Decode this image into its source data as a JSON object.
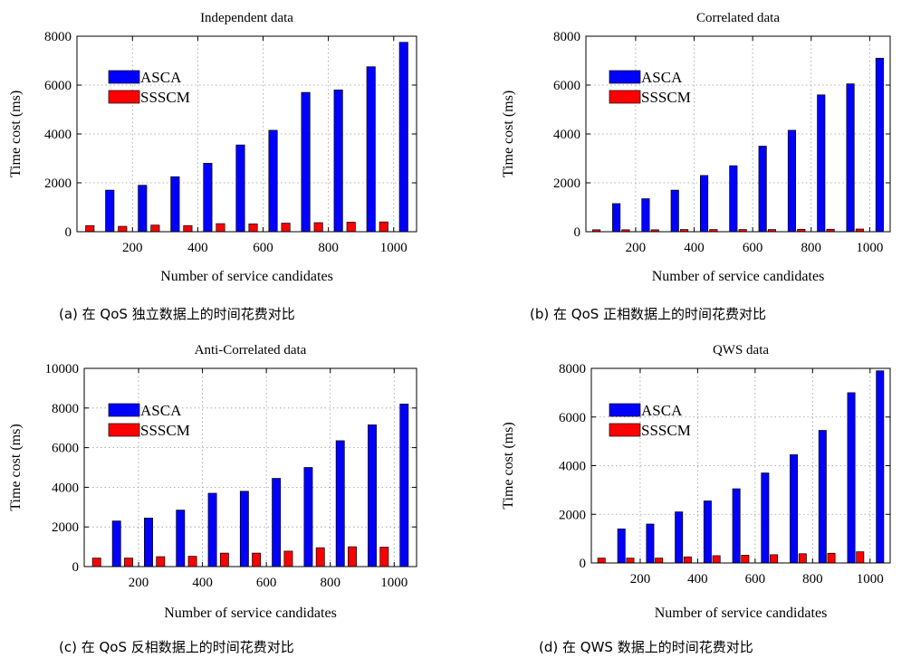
{
  "chart_data": [
    {
      "type": "bar",
      "title": "Independent data",
      "xlabel": "Number of service candidates",
      "ylabel": "Time cost (ms)",
      "caption": "(a)  在 QoS 独立数据上的时间花费对比",
      "categories": [
        100,
        200,
        300,
        400,
        500,
        600,
        700,
        800,
        900,
        1000
      ],
      "x_tick_labels": [
        "200",
        "400",
        "600",
        "800",
        "1000"
      ],
      "ylim": [
        0,
        8000
      ],
      "y_ticks": [
        0,
        2000,
        4000,
        6000,
        8000
      ],
      "grid": true,
      "legend_position": "upper-left",
      "series": [
        {
          "name": "ASCA",
          "color": "#0000ff",
          "values": [
            1700,
            1900,
            2250,
            2800,
            3550,
            4150,
            5700,
            5800,
            6750,
            7750
          ]
        },
        {
          "name": "SSSCM",
          "color": "#ff0000",
          "values": [
            250,
            220,
            270,
            250,
            330,
            320,
            350,
            370,
            390,
            400
          ]
        }
      ]
    },
    {
      "type": "bar",
      "title": "Correlated data",
      "xlabel": "Number of service candidates",
      "ylabel": "Time cost (ms)",
      "caption": "(b)  在 QoS 正相数据上的时间花费对比",
      "categories": [
        100,
        200,
        300,
        400,
        500,
        600,
        700,
        800,
        900,
        1000
      ],
      "x_tick_labels": [
        "200",
        "400",
        "600",
        "800",
        "1000"
      ],
      "ylim": [
        0,
        8000
      ],
      "y_ticks": [
        0,
        2000,
        4000,
        6000,
        8000
      ],
      "grid": true,
      "legend_position": "upper-left",
      "series": [
        {
          "name": "ASCA",
          "color": "#0000ff",
          "values": [
            1150,
            1350,
            1700,
            2300,
            2700,
            3500,
            4150,
            5600,
            6050,
            7100
          ]
        },
        {
          "name": "SSSCM",
          "color": "#ff0000",
          "values": [
            80,
            80,
            80,
            90,
            90,
            90,
            90,
            100,
            100,
            110
          ]
        }
      ]
    },
    {
      "type": "bar",
      "title": "Anti-Correlated data",
      "xlabel": "Number of service candidates",
      "ylabel": "Time cost (ms)",
      "caption": "(c)  在 QoS 反相数据上的时间花费对比",
      "categories": [
        100,
        200,
        300,
        400,
        500,
        600,
        700,
        800,
        900,
        1000
      ],
      "x_tick_labels": [
        "200",
        "400",
        "600",
        "800",
        "1000"
      ],
      "ylim": [
        0,
        10000
      ],
      "y_ticks": [
        0,
        2000,
        4000,
        6000,
        8000,
        10000
      ],
      "grid": true,
      "legend_position": "upper-left",
      "series": [
        {
          "name": "ASCA",
          "color": "#0000ff",
          "values": [
            2300,
            2450,
            2850,
            3700,
            3800,
            4450,
            5000,
            6350,
            7150,
            8200
          ]
        },
        {
          "name": "SSSCM",
          "color": "#ff0000",
          "values": [
            430,
            430,
            500,
            520,
            680,
            680,
            780,
            950,
            1000,
            980
          ]
        }
      ]
    },
    {
      "type": "bar",
      "title": "QWS data",
      "xlabel": "Number of service candidates",
      "ylabel": "Time cost (ms)",
      "caption": "(d)  在 QWS 数据上的时间花费对比",
      "categories": [
        100,
        200,
        300,
        400,
        500,
        600,
        700,
        800,
        900,
        1000
      ],
      "x_tick_labels": [
        "200",
        "400",
        "600",
        "800",
        "1000"
      ],
      "ylim": [
        0,
        8000
      ],
      "y_ticks": [
        0,
        2000,
        4000,
        6000,
        8000
      ],
      "grid": true,
      "legend_position": "upper-left",
      "series": [
        {
          "name": "ASCA",
          "color": "#0000ff",
          "values": [
            1400,
            1600,
            2100,
            2550,
            3050,
            3700,
            4450,
            5450,
            7000,
            7900
          ]
        },
        {
          "name": "SSSCM",
          "color": "#ff0000",
          "values": [
            200,
            200,
            200,
            250,
            300,
            320,
            340,
            380,
            400,
            460
          ]
        }
      ]
    }
  ]
}
